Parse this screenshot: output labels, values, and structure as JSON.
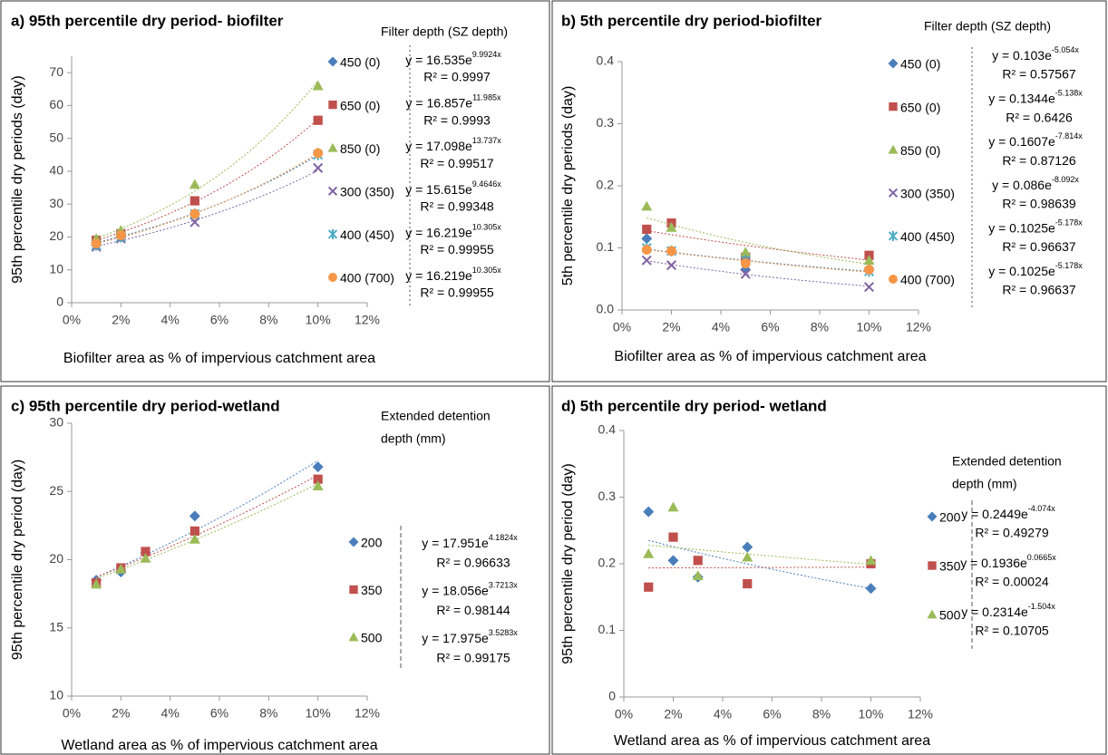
{
  "chart_data": [
    {
      "type": "scatter",
      "title": "a) 95th percentile dry period- biofilter",
      "x_label": "Biofilter area as % of impervious catchment area",
      "y_label": "95th percentile dry periods (day)",
      "legend_title": [
        "Filter depth (SZ depth)"
      ],
      "x": [
        1,
        2,
        5,
        10
      ],
      "xlim": [
        0,
        12
      ],
      "xticks": [
        {
          "value": 0,
          "label": "0%"
        },
        {
          "value": 2,
          "label": "2%"
        },
        {
          "value": 4,
          "label": "4%"
        },
        {
          "value": 6,
          "label": "6%"
        },
        {
          "value": 8,
          "label": "8%"
        },
        {
          "value": 10,
          "label": "10%"
        },
        {
          "value": 12,
          "label": "12%"
        }
      ],
      "ylim": [
        0,
        75
      ],
      "yticks": [
        0,
        10,
        20,
        30,
        40,
        50,
        60,
        70
      ],
      "series": [
        {
          "name": "450 (0)",
          "color": "#4a7ebb",
          "marker": "diamond",
          "values": [
            17.5,
            20,
            27,
            45.5
          ],
          "eq": "y = 16.535e",
          "eq_exp": "9.9924x",
          "r2": "R² = 0.9997"
        },
        {
          "name": "650 (0)",
          "color": "#c0504d",
          "marker": "square",
          "values": [
            19,
            21,
            31,
            55.5
          ],
          "eq": "y = 16.857e",
          "eq_exp": "11.985x",
          "r2": "R² = 0.9993"
        },
        {
          "name": "850 (0)",
          "color": "#9bbb59",
          "marker": "triangle",
          "values": [
            19.5,
            22,
            36,
            66
          ],
          "eq": "y = 17.098e",
          "eq_exp": "13.737x",
          "r2": "R² = 0.99517"
        },
        {
          "name": "300 (350)",
          "color": "#8064a2",
          "marker": "x",
          "values": [
            17,
            19.5,
            24.5,
            41
          ],
          "eq": "y = 15.615e",
          "eq_exp": "9.4646x",
          "r2": "R² = 0.99348"
        },
        {
          "name": "400 (450)",
          "color": "#4bacc6",
          "marker": "star",
          "values": [
            17.5,
            20,
            27,
            45
          ],
          "eq": "y = 16.219e",
          "eq_exp": "10.305x",
          "r2": "R² = 0.99955"
        },
        {
          "name": "400 (700)",
          "color": "#f79646",
          "marker": "circle",
          "values": [
            18,
            20.5,
            27,
            45.5
          ],
          "eq": "y = 16.219e",
          "eq_exp": "10.305x",
          "r2": "R² = 0.99955"
        }
      ]
    },
    {
      "type": "scatter",
      "title": "b) 5th percentile dry period-biofilter",
      "x_label": "Biofilter area as % of impervious catchment area",
      "y_label": "5th percentile dry periods (day)",
      "legend_title": [
        "Filter depth (SZ depth)"
      ],
      "x": [
        1,
        2,
        5,
        10
      ],
      "xlim": [
        0,
        12
      ],
      "xticks": [
        {
          "value": 0,
          "label": "0%"
        },
        {
          "value": 2,
          "label": "2%"
        },
        {
          "value": 4,
          "label": "4%"
        },
        {
          "value": 6,
          "label": "6%"
        },
        {
          "value": 8,
          "label": "8%"
        },
        {
          "value": 10,
          "label": "10%"
        },
        {
          "value": 12,
          "label": "12%"
        }
      ],
      "ylim": [
        0,
        0.4
      ],
      "yticks": [
        {
          "value": 0,
          "label": "0.0"
        },
        0.1,
        0.2,
        0.3,
        0.4
      ],
      "series": [
        {
          "name": "450 (0)",
          "color": "#4a7ebb",
          "marker": "diamond",
          "values": [
            0.115,
            0.095,
            0.065,
            0.065
          ],
          "eq": "y = 0.103e",
          "eq_exp": "-5.054x",
          "r2": "R² = 0.57567"
        },
        {
          "name": "650 (0)",
          "color": "#c0504d",
          "marker": "square",
          "values": [
            0.13,
            0.14,
            0.085,
            0.088
          ],
          "eq": "y = 0.1344e",
          "eq_exp": "-5.138x",
          "r2": "R² = 0.6426"
        },
        {
          "name": "850 (0)",
          "color": "#9bbb59",
          "marker": "triangle",
          "values": [
            0.167,
            0.133,
            0.093,
            0.08
          ],
          "eq": "y = 0.1607e",
          "eq_exp": "-7.814x",
          "r2": "R² = 0.87126"
        },
        {
          "name": "300 (350)",
          "color": "#8064a2",
          "marker": "x",
          "values": [
            0.08,
            0.072,
            0.058,
            0.037
          ],
          "eq": "y = 0.086e",
          "eq_exp": "-8.092x",
          "r2": "R² = 0.98639"
        },
        {
          "name": "400 (450)",
          "color": "#4bacc6",
          "marker": "star",
          "values": [
            0.1,
            0.095,
            0.08,
            0.062
          ],
          "eq": "y = 0.1025e",
          "eq_exp": "-5.178x",
          "r2": "R² = 0.96637"
        },
        {
          "name": "400 (700)",
          "color": "#f79646",
          "marker": "circle",
          "values": [
            0.097,
            0.095,
            0.075,
            0.065
          ],
          "eq": "y = 0.1025e",
          "eq_exp": "-5.178x",
          "r2": "R² = 0.96637"
        }
      ]
    },
    {
      "type": "scatter",
      "title": "c) 95th percentile dry period-wetland",
      "x_label": "Wetland area as % of impervious catchment area",
      "y_label": "95th percentile dry period (day)",
      "legend_title": [
        "Extended detention",
        "depth (mm)"
      ],
      "x": [
        1,
        2,
        3,
        5,
        10
      ],
      "xlim": [
        0,
        12
      ],
      "xticks": [
        {
          "value": 0,
          "label": "0%"
        },
        {
          "value": 2,
          "label": "2%"
        },
        {
          "value": 4,
          "label": "4%"
        },
        {
          "value": 6,
          "label": "6%"
        },
        {
          "value": 8,
          "label": "8%"
        },
        {
          "value": 10,
          "label": "10%"
        },
        {
          "value": 12,
          "label": "12%"
        }
      ],
      "ylim": [
        10,
        30
      ],
      "yticks": [
        10,
        15,
        20,
        25,
        30
      ],
      "series": [
        {
          "name": "200",
          "color": "#4a7ebb",
          "marker": "diamond",
          "values": [
            18.5,
            19.1,
            20.5,
            23.2,
            26.8
          ],
          "eq": "y = 17.951e",
          "eq_exp": "4.1824x",
          "r2": "R² = 0.96633"
        },
        {
          "name": "350",
          "color": "#c0504d",
          "marker": "square",
          "values": [
            18.3,
            19.4,
            20.6,
            22.1,
            25.9
          ],
          "eq": "y = 18.056e",
          "eq_exp": "3.7213x",
          "r2": "R² = 0.98144"
        },
        {
          "name": "500",
          "color": "#9bbb59",
          "marker": "triangle",
          "values": [
            18.2,
            19.3,
            20.1,
            21.5,
            25.4
          ],
          "eq": "y = 17.975e",
          "eq_exp": "3.5283x",
          "r2": "R² = 0.99175"
        }
      ]
    },
    {
      "type": "scatter",
      "title": "d) 5th percentile dry period- wetland",
      "x_label": "Wetland area as % of impervious catchment area",
      "y_label": "95th percentile dry period (day)",
      "legend_title": [
        "Extended detention",
        "depth (mm)"
      ],
      "x": [
        1,
        2,
        3,
        5,
        10
      ],
      "xlim": [
        0,
        12
      ],
      "xticks": [
        {
          "value": 0,
          "label": "0%"
        },
        {
          "value": 2,
          "label": "2%"
        },
        {
          "value": 4,
          "label": "4%"
        },
        {
          "value": 6,
          "label": "6%"
        },
        {
          "value": 8,
          "label": "8%"
        },
        {
          "value": 10,
          "label": "10%"
        },
        {
          "value": 12,
          "label": "12%"
        }
      ],
      "ylim": [
        0,
        0.4
      ],
      "yticks": [
        0,
        0.1,
        0.2,
        0.3,
        0.4
      ],
      "series": [
        {
          "name": "200",
          "color": "#4a7ebb",
          "marker": "diamond",
          "values": [
            0.278,
            0.205,
            0.18,
            0.225,
            0.163
          ],
          "eq": "y = 0.2449e",
          "eq_exp": "-4.074x",
          "r2": "R² = 0.49279"
        },
        {
          "name": "350",
          "color": "#c0504d",
          "marker": "square",
          "values": [
            0.165,
            0.24,
            0.205,
            0.17,
            0.2
          ],
          "eq": "y = 0.1936e",
          "eq_exp": "0.0665x",
          "r2": "R² = 0.00024"
        },
        {
          "name": "500",
          "color": "#9bbb59",
          "marker": "triangle",
          "values": [
            0.215,
            0.285,
            0.182,
            0.21,
            0.205
          ],
          "eq": "y = 0.2314e",
          "eq_exp": "-1.504x",
          "r2": "R² = 0.10705"
        }
      ]
    }
  ]
}
